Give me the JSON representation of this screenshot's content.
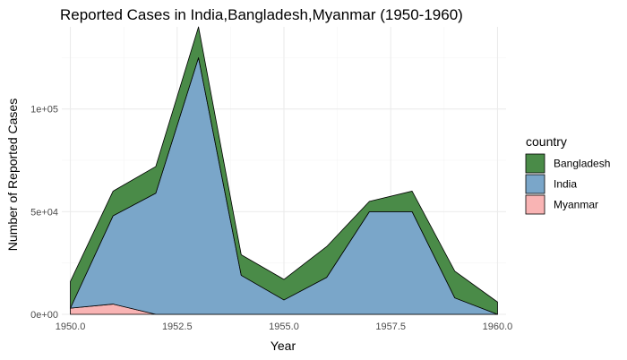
{
  "chart_data": {
    "type": "area",
    "stacked": true,
    "title": "Reported Cases in India,Bangladesh,Myanmar (1950-1960)",
    "xlabel": "Year",
    "ylabel": "Number of Reported Cases",
    "x": [
      1950,
      1951,
      1952,
      1953,
      1954,
      1955,
      1956,
      1957,
      1958,
      1959,
      1960
    ],
    "xlim": [
      1949.8,
      1960.2
    ],
    "ylim": [
      0,
      140000
    ],
    "x_ticks": [
      1950.0,
      1952.5,
      1955.0,
      1957.5,
      1960.0
    ],
    "x_tick_labels": [
      "1950.0",
      "1952.5",
      "1955.0",
      "1957.5",
      "1960.0"
    ],
    "y_ticks": [
      0,
      50000,
      100000
    ],
    "y_tick_labels": [
      "0e+00",
      "5e+04",
      "1e+05"
    ],
    "grid": true,
    "legend": {
      "title": "country",
      "placement": "right"
    },
    "series": [
      {
        "name": "Bangladesh",
        "color": "#4a8b48",
        "values": [
          13000,
          12000,
          13000,
          15000,
          10000,
          10000,
          15000,
          5000,
          10000,
          13000,
          6000
        ]
      },
      {
        "name": "India",
        "color": "#7aa6c9",
        "values": [
          0,
          43000,
          59000,
          125000,
          19000,
          7000,
          18000,
          50000,
          50000,
          8000,
          0
        ]
      },
      {
        "name": "Myanmar",
        "color": "#f9b4b4",
        "values": [
          3000,
          5000,
          0,
          0,
          0,
          0,
          0,
          0,
          0,
          0,
          0
        ]
      }
    ]
  }
}
